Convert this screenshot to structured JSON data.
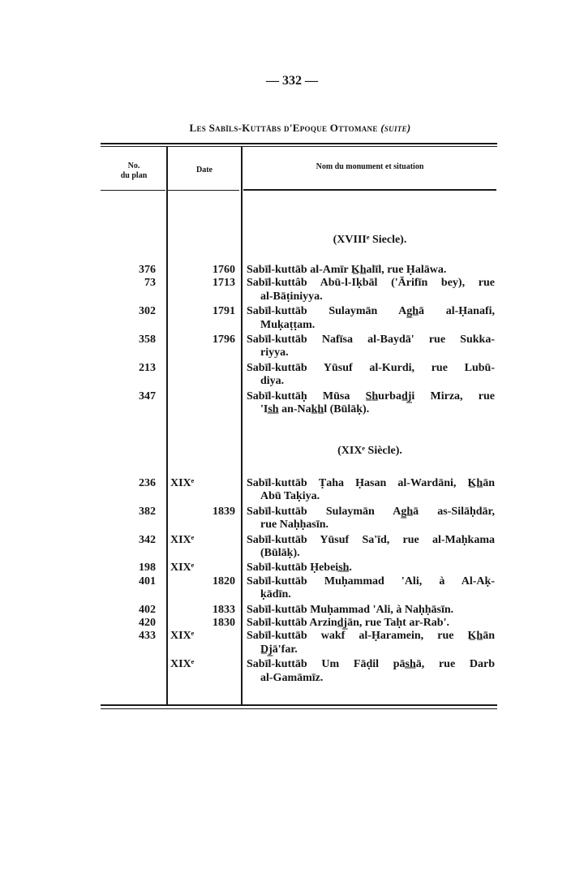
{
  "page_number": "— 332 —",
  "title": "Les Sabīls-Kuttābs d'Epoque Ottomane",
  "title_suffix": "(suite)",
  "headers": {
    "plan": "No.\ndu plan",
    "date": "Date",
    "name": "Nom du monument et situation"
  },
  "sections": [
    {
      "heading": "(XVIIIᵉ Siecle).",
      "rows": [
        {
          "plan": "376",
          "date": "1760",
          "lines": [
            "Sabīl-kuttāb al-Amīr K̲h̲alīl, rue Ḥalāwa."
          ]
        },
        {
          "plan": "73",
          "date": "1713",
          "lines": [
            "Sabīl-kuttâb Abū-l-Iḳbāl ('Ārifīn bey), rue",
            "al-Bāṭiniyya."
          ]
        },
        {
          "plan": "302",
          "date": "1791",
          "lines": [
            "Sabīl-kuttāb Sulaymān Ag̲h̲ā al-Ḥanafi,",
            "Muḳaṭṭam."
          ]
        },
        {
          "plan": "358",
          "date": "1796",
          "lines": [
            "Sabīl-kuttāb Nafīsa al-Baydā' rue Sukka-",
            "riyya."
          ]
        },
        {
          "plan": "213",
          "date": "",
          "lines": [
            "Sabīl-kuttāb Yūsuf al-Kurdi, rue Lubū-",
            "diya."
          ]
        },
        {
          "plan": "347",
          "date": "",
          "lines": [
            "Sabīl-kuttāḥ Mūsa S̲h̲urbad̲j̲i Mirza, rue",
            "'Is̲h̲ an-Nak̲h̲l (Būlāḳ)."
          ]
        }
      ]
    },
    {
      "heading": "(XIXᵉ Siècle).",
      "rows": [
        {
          "plan": "236",
          "date": "XIXᵉ",
          "lines": [
            "Sabīl-kuttāb Ṭaha Ḥasan al-Wardāni, K̲h̲ān",
            "Abū Taḳiya."
          ]
        },
        {
          "plan": "382",
          "date": "1839",
          "lines": [
            "Sabīl-kuttāb Sulaymān Ag̲h̲ā as-Silāḥdār,",
            "rue Naḥḥasīn."
          ]
        },
        {
          "plan": "342",
          "date": "XIXᵉ",
          "lines": [
            "Sabīl-kuttāb Yūsuf Sa'īd, rue al-Maḥkama",
            "(Būlāḳ)."
          ]
        },
        {
          "plan": "198",
          "date": "XIXᵉ",
          "lines": [
            "Sabīl-kuttāb Ḥebeis̲h̲."
          ]
        },
        {
          "plan": "401",
          "date": "1820",
          "lines": [
            "Sabīl-kuttāb Muḥammad 'Ali, à Al-Aḳ-",
            "ḳādīn."
          ]
        },
        {
          "plan": "402",
          "date": "1833",
          "lines": [
            "Sabīl-kuttāb Muḥammad 'Ali, à Naḥḥāsīn."
          ]
        },
        {
          "plan": "420",
          "date": "1830",
          "lines": [
            "Sabīl-kuttāb Arzind̲j̲ān, rue Taḥt ar-Rab'."
          ]
        },
        {
          "plan": "433",
          "date": "XIXᵉ",
          "lines": [
            "Sabīl-kuttāb wakf al-Ḥaramein, rue K̲h̲ān",
            "D̲j̲ā'far."
          ]
        },
        {
          "plan": "",
          "date": "XIXᵉ",
          "lines": [
            "Sabīl-kuttāb Um Fāḍil pās̲h̲ā, rue Darb",
            "al-Gamāmīz."
          ]
        }
      ]
    }
  ]
}
